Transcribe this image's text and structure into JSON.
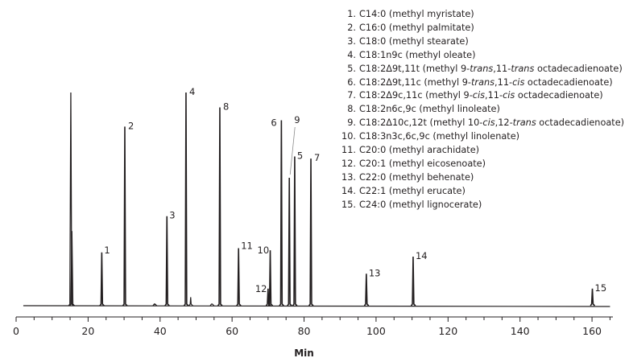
{
  "chart_data": {
    "type": "line",
    "xlabel": "Min",
    "ylabel": "",
    "xlim": [
      0,
      165
    ],
    "x_ticks": [
      0,
      20,
      40,
      60,
      80,
      100,
      120,
      140,
      160
    ],
    "x_minor_step": 5,
    "grid": false,
    "line_color": "#231f20",
    "baseline": 0.03,
    "peak_width": 0.35,
    "solvent": [
      {
        "x": 15.2,
        "height": 1.0
      },
      {
        "x": 15.5,
        "height": 0.35
      }
    ],
    "artifacts": [
      {
        "x": 38.5,
        "height": 0.005
      },
      {
        "x": 48.5,
        "height": 0.04
      },
      {
        "x": 54.4,
        "height": 0.008
      }
    ],
    "peaks": [
      {
        "label": "1",
        "x": 23.8,
        "height": 0.25
      },
      {
        "label": "2",
        "x": 30.2,
        "height": 0.84
      },
      {
        "label": "3",
        "x": 41.9,
        "height": 0.42
      },
      {
        "label": "4",
        "x": 47.2,
        "height": 1.0
      },
      {
        "label": "8",
        "x": 56.6,
        "height": 0.93
      },
      {
        "label": "11",
        "x": 61.8,
        "height": 0.27
      },
      {
        "label": "12",
        "x": 70.0,
        "height": 0.08
      },
      {
        "label": "10",
        "x": 70.6,
        "height": 0.26
      },
      {
        "label": "6",
        "x": 73.7,
        "height": 0.87
      },
      {
        "label": "9",
        "x": 75.9,
        "height": 0.6
      },
      {
        "label": "5",
        "x": 77.4,
        "height": 0.7
      },
      {
        "label": "7",
        "x": 81.9,
        "height": 0.69
      },
      {
        "label": "13",
        "x": 97.3,
        "height": 0.15
      },
      {
        "label": "14",
        "x": 110.3,
        "height": 0.23
      },
      {
        "label": "15",
        "x": 160.1,
        "height": 0.08
      }
    ]
  },
  "legend": {
    "items": [
      {
        "num": "1.",
        "text": "C14:0 (methyl myristate)"
      },
      {
        "num": "2.",
        "text": "C16:0 (methyl palmitate)"
      },
      {
        "num": "3.",
        "text": "C18:0 (methyl stearate)"
      },
      {
        "num": "4.",
        "text": "C18:1n9c (methyl oleate)"
      },
      {
        "num": "5.",
        "segments": [
          {
            "t": "C18:2Δ9t,11t (methyl 9-"
          },
          {
            "t": "trans",
            "i": true
          },
          {
            "t": ",11-"
          },
          {
            "t": "trans",
            "i": true
          },
          {
            "t": " octadecadienoate)"
          }
        ]
      },
      {
        "num": "6.",
        "segments": [
          {
            "t": "C18:2Δ9t,11c (methyl 9-"
          },
          {
            "t": "trans",
            "i": true
          },
          {
            "t": ",11-"
          },
          {
            "t": "cis",
            "i": true
          },
          {
            "t": " octadecadienoate)"
          }
        ]
      },
      {
        "num": "7.",
        "segments": [
          {
            "t": "C18:2Δ9c,11c (methyl 9-"
          },
          {
            "t": "cis",
            "i": true
          },
          {
            "t": ",11-"
          },
          {
            "t": "cis",
            "i": true
          },
          {
            "t": " octadecadienoate)"
          }
        ]
      },
      {
        "num": "8.",
        "text": "C18:2n6c,9c (methyl linoleate)"
      },
      {
        "num": "9.",
        "segments": [
          {
            "t": "C18:2Δ10c,12t (methyl 10-"
          },
          {
            "t": "cis",
            "i": true
          },
          {
            "t": ",12-"
          },
          {
            "t": "trans",
            "i": true
          },
          {
            "t": " octadecadienoate)"
          }
        ]
      },
      {
        "num": "10.",
        "text": "C18:3n3c,6c,9c (methyl linolenate)"
      },
      {
        "num": "11.",
        "text": "C20:0 (methyl arachidate)"
      },
      {
        "num": "12.",
        "text": "C20:1 (methyl eicosenoate)"
      },
      {
        "num": "13.",
        "text": "C22:0 (methyl behenate)"
      },
      {
        "num": "14.",
        "text": "C22:1 (methyl erucate)"
      },
      {
        "num": "15.",
        "text": "C24:0 (methyl lignocerate)"
      }
    ]
  }
}
